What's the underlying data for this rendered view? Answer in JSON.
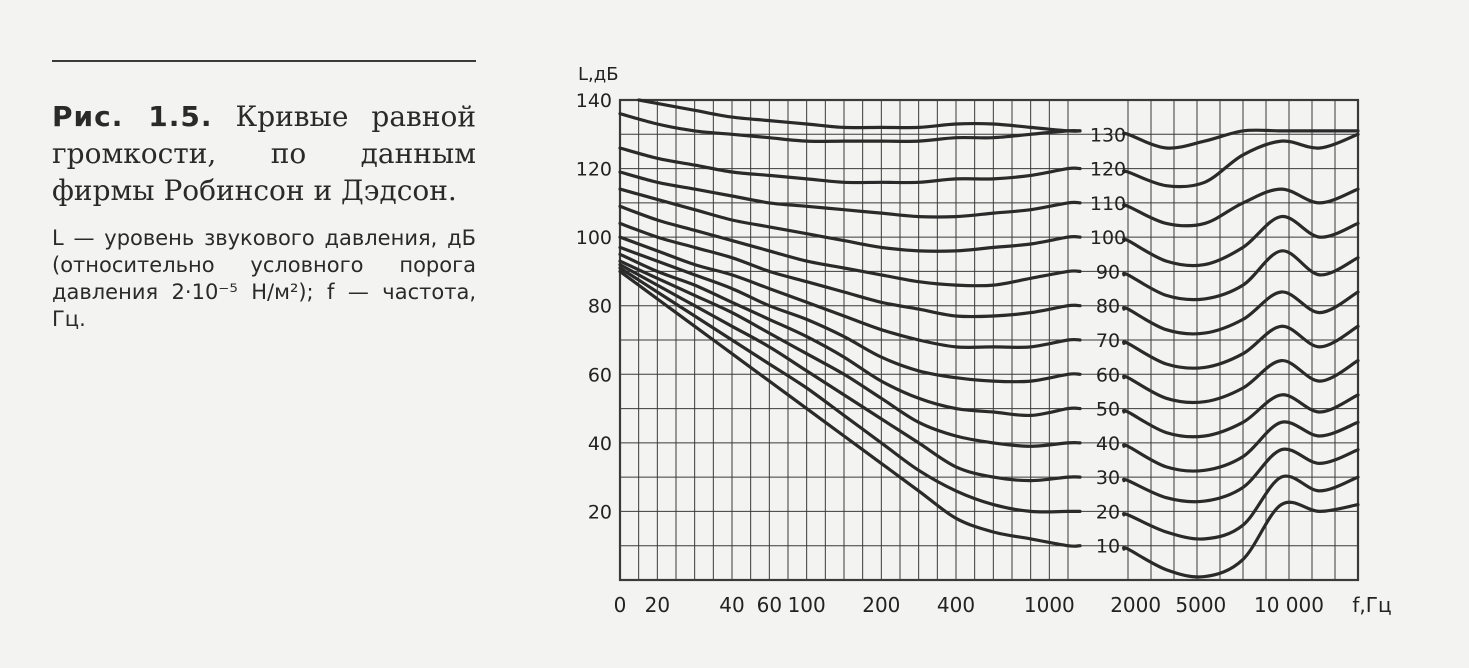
{
  "caption": {
    "figure_label": "Рис. 1.5.",
    "title": "Кривые равной громкости, по данным фирмы Робинсон и Дэдсон.",
    "note": "L — уровень звукового давления, дБ (относительно условного порога давления 2·10⁻⁵ Н/м²); f — частота, Гц."
  },
  "colors": {
    "background": "#f3f3f1",
    "ink": "#2a2a2a",
    "grid": "#3a3a3a"
  },
  "chart_data": {
    "type": "line",
    "title": "",
    "ylabel": "L,дБ",
    "xlabel": "f,Гц",
    "ylim": [
      0,
      140
    ],
    "yticks": [
      20,
      40,
      60,
      80,
      100,
      120,
      140
    ],
    "x_ticks": [
      {
        "label": "0",
        "pos": 0
      },
      {
        "label": "20",
        "pos": 1
      },
      {
        "label": "40",
        "pos": 3
      },
      {
        "label": "60",
        "pos": 4
      },
      {
        "label": "100",
        "pos": 5
      },
      {
        "label": "200",
        "pos": 7
      },
      {
        "label": "400",
        "pos": 9
      },
      {
        "label": "1000",
        "pos": 11.5
      },
      {
        "label": "2000",
        "pos": 13.2
      },
      {
        "label": "5000",
        "pos": 14.9
      },
      {
        "label": "10 000",
        "pos": 17.2
      }
    ],
    "grid": true,
    "curve_labels": [
      "10",
      "20",
      "30",
      "40",
      "50",
      "60",
      "70",
      "80",
      "90",
      "100",
      "110",
      "120",
      "130"
    ],
    "series": [
      {
        "name": "10",
        "points": [
          [
            0,
            90
          ],
          [
            1,
            82
          ],
          [
            2,
            74
          ],
          [
            3,
            66
          ],
          [
            4,
            58
          ],
          [
            5,
            50
          ],
          [
            6,
            42
          ],
          [
            7,
            34
          ],
          [
            8,
            26
          ],
          [
            9,
            18
          ],
          [
            10,
            14
          ],
          [
            11,
            12
          ],
          [
            12,
            10
          ],
          [
            13,
            9
          ],
          [
            14,
            3
          ],
          [
            15,
            1
          ],
          [
            16,
            6
          ],
          [
            17,
            22
          ],
          [
            18,
            20
          ],
          [
            19,
            22
          ]
        ]
      },
      {
        "name": "20",
        "points": [
          [
            0,
            91
          ],
          [
            1,
            84
          ],
          [
            2,
            77
          ],
          [
            3,
            70
          ],
          [
            4,
            63
          ],
          [
            5,
            56
          ],
          [
            6,
            48
          ],
          [
            7,
            40
          ],
          [
            8,
            32
          ],
          [
            9,
            26
          ],
          [
            10,
            22
          ],
          [
            11,
            20
          ],
          [
            12,
            20
          ],
          [
            13,
            19
          ],
          [
            14,
            14
          ],
          [
            15,
            12
          ],
          [
            16,
            16
          ],
          [
            17,
            30
          ],
          [
            18,
            26
          ],
          [
            19,
            30
          ]
        ]
      },
      {
        "name": "30",
        "points": [
          [
            0,
            92
          ],
          [
            1,
            86
          ],
          [
            2,
            80
          ],
          [
            3,
            74
          ],
          [
            4,
            68
          ],
          [
            5,
            61
          ],
          [
            6,
            54
          ],
          [
            7,
            47
          ],
          [
            8,
            40
          ],
          [
            9,
            33
          ],
          [
            10,
            30
          ],
          [
            11,
            29
          ],
          [
            12,
            30
          ],
          [
            13,
            29
          ],
          [
            14,
            24
          ],
          [
            15,
            23
          ],
          [
            16,
            27
          ],
          [
            17,
            38
          ],
          [
            18,
            34
          ],
          [
            19,
            38
          ]
        ]
      },
      {
        "name": "40",
        "points": [
          [
            0,
            93
          ],
          [
            1,
            88
          ],
          [
            2,
            83
          ],
          [
            3,
            78
          ],
          [
            4,
            72
          ],
          [
            5,
            66
          ],
          [
            6,
            60
          ],
          [
            7,
            53
          ],
          [
            8,
            46
          ],
          [
            9,
            42
          ],
          [
            10,
            40
          ],
          [
            11,
            39
          ],
          [
            12,
            40
          ],
          [
            13,
            39
          ],
          [
            14,
            33
          ],
          [
            15,
            32
          ],
          [
            16,
            36
          ],
          [
            17,
            46
          ],
          [
            18,
            42
          ],
          [
            19,
            46
          ]
        ]
      },
      {
        "name": "50",
        "points": [
          [
            0,
            95
          ],
          [
            1,
            90
          ],
          [
            2,
            86
          ],
          [
            3,
            81
          ],
          [
            4,
            76
          ],
          [
            5,
            71
          ],
          [
            6,
            65
          ],
          [
            7,
            58
          ],
          [
            8,
            53
          ],
          [
            9,
            50
          ],
          [
            10,
            49
          ],
          [
            11,
            48
          ],
          [
            12,
            50
          ],
          [
            13,
            49
          ],
          [
            14,
            43
          ],
          [
            15,
            42
          ],
          [
            16,
            46
          ],
          [
            17,
            54
          ],
          [
            18,
            49
          ],
          [
            19,
            54
          ]
        ]
      },
      {
        "name": "60",
        "points": [
          [
            0,
            97
          ],
          [
            1,
            93
          ],
          [
            2,
            89
          ],
          [
            3,
            85
          ],
          [
            4,
            80
          ],
          [
            5,
            76
          ],
          [
            6,
            71
          ],
          [
            7,
            65
          ],
          [
            8,
            61
          ],
          [
            9,
            59
          ],
          [
            10,
            58
          ],
          [
            11,
            58
          ],
          [
            12,
            60
          ],
          [
            13,
            59
          ],
          [
            14,
            53
          ],
          [
            15,
            52
          ],
          [
            16,
            56
          ],
          [
            17,
            64
          ],
          [
            18,
            58
          ],
          [
            19,
            64
          ]
        ]
      },
      {
        "name": "70",
        "points": [
          [
            0,
            100
          ],
          [
            1,
            96
          ],
          [
            2,
            92
          ],
          [
            3,
            89
          ],
          [
            4,
            85
          ],
          [
            5,
            81
          ],
          [
            6,
            77
          ],
          [
            7,
            73
          ],
          [
            8,
            70
          ],
          [
            9,
            68
          ],
          [
            10,
            68
          ],
          [
            11,
            68
          ],
          [
            12,
            70
          ],
          [
            13,
            69
          ],
          [
            14,
            63
          ],
          [
            15,
            62
          ],
          [
            16,
            66
          ],
          [
            17,
            74
          ],
          [
            18,
            68
          ],
          [
            19,
            74
          ]
        ]
      },
      {
        "name": "80",
        "points": [
          [
            0,
            104
          ],
          [
            1,
            100
          ],
          [
            2,
            97
          ],
          [
            3,
            94
          ],
          [
            4,
            90
          ],
          [
            5,
            87
          ],
          [
            6,
            84
          ],
          [
            7,
            81
          ],
          [
            8,
            79
          ],
          [
            9,
            77
          ],
          [
            10,
            77
          ],
          [
            11,
            78
          ],
          [
            12,
            80
          ],
          [
            13,
            79
          ],
          [
            14,
            73
          ],
          [
            15,
            72
          ],
          [
            16,
            76
          ],
          [
            17,
            84
          ],
          [
            18,
            78
          ],
          [
            19,
            84
          ]
        ]
      },
      {
        "name": "90",
        "points": [
          [
            0,
            109
          ],
          [
            1,
            105
          ],
          [
            2,
            102
          ],
          [
            3,
            99
          ],
          [
            4,
            96
          ],
          [
            5,
            93
          ],
          [
            6,
            91
          ],
          [
            7,
            89
          ],
          [
            8,
            87
          ],
          [
            9,
            86
          ],
          [
            10,
            86
          ],
          [
            11,
            88
          ],
          [
            12,
            90
          ],
          [
            13,
            89
          ],
          [
            14,
            83
          ],
          [
            15,
            82
          ],
          [
            16,
            86
          ],
          [
            17,
            96
          ],
          [
            18,
            89
          ],
          [
            19,
            94
          ]
        ]
      },
      {
        "name": "100",
        "points": [
          [
            0,
            114
          ],
          [
            1,
            111
          ],
          [
            2,
            108
          ],
          [
            3,
            105
          ],
          [
            4,
            103
          ],
          [
            5,
            101
          ],
          [
            6,
            99
          ],
          [
            7,
            97
          ],
          [
            8,
            96
          ],
          [
            9,
            96
          ],
          [
            10,
            97
          ],
          [
            11,
            98
          ],
          [
            12,
            100
          ],
          [
            13,
            99
          ],
          [
            14,
            93
          ],
          [
            15,
            92
          ],
          [
            16,
            97
          ],
          [
            17,
            106
          ],
          [
            18,
            100
          ],
          [
            19,
            104
          ]
        ]
      },
      {
        "name": "110",
        "points": [
          [
            0,
            119
          ],
          [
            1,
            116
          ],
          [
            2,
            114
          ],
          [
            3,
            112
          ],
          [
            4,
            110
          ],
          [
            5,
            109
          ],
          [
            6,
            108
          ],
          [
            7,
            107
          ],
          [
            8,
            106
          ],
          [
            9,
            106
          ],
          [
            10,
            107
          ],
          [
            11,
            108
          ],
          [
            12,
            110
          ],
          [
            13,
            109
          ],
          [
            14,
            104
          ],
          [
            15,
            104
          ],
          [
            16,
            110
          ],
          [
            17,
            114
          ],
          [
            18,
            110
          ],
          [
            19,
            114
          ]
        ]
      },
      {
        "name": "120",
        "points": [
          [
            0,
            126
          ],
          [
            1,
            123
          ],
          [
            2,
            121
          ],
          [
            3,
            119
          ],
          [
            4,
            118
          ],
          [
            5,
            117
          ],
          [
            6,
            116
          ],
          [
            7,
            116
          ],
          [
            8,
            116
          ],
          [
            9,
            117
          ],
          [
            10,
            117
          ],
          [
            11,
            118
          ],
          [
            12,
            120
          ],
          [
            13,
            119
          ],
          [
            14,
            115
          ],
          [
            15,
            116
          ],
          [
            16,
            124
          ],
          [
            17,
            128
          ],
          [
            18,
            126
          ],
          [
            19,
            130
          ]
        ]
      },
      {
        "name": "130",
        "points": [
          [
            0,
            136
          ],
          [
            1,
            133
          ],
          [
            2,
            131
          ],
          [
            3,
            130
          ],
          [
            4,
            129
          ],
          [
            5,
            128
          ],
          [
            6,
            128
          ],
          [
            7,
            128
          ],
          [
            8,
            128
          ],
          [
            9,
            129
          ],
          [
            10,
            129
          ],
          [
            11,
            130
          ],
          [
            12,
            131
          ],
          [
            13,
            130
          ],
          [
            14,
            126
          ],
          [
            15,
            128
          ],
          [
            16,
            131
          ],
          [
            17,
            131
          ],
          [
            18,
            131
          ],
          [
            19,
            131
          ]
        ]
      },
      {
        "name": "",
        "points": [
          [
            0.5,
            140
          ],
          [
            1,
            139
          ],
          [
            2,
            137
          ],
          [
            3,
            135
          ],
          [
            4,
            134
          ],
          [
            5,
            133
          ],
          [
            6,
            132
          ],
          [
            7,
            132
          ],
          [
            8,
            132
          ],
          [
            9,
            133
          ],
          [
            10,
            133
          ],
          [
            11,
            132
          ],
          [
            12,
            131
          ]
        ]
      }
    ]
  }
}
